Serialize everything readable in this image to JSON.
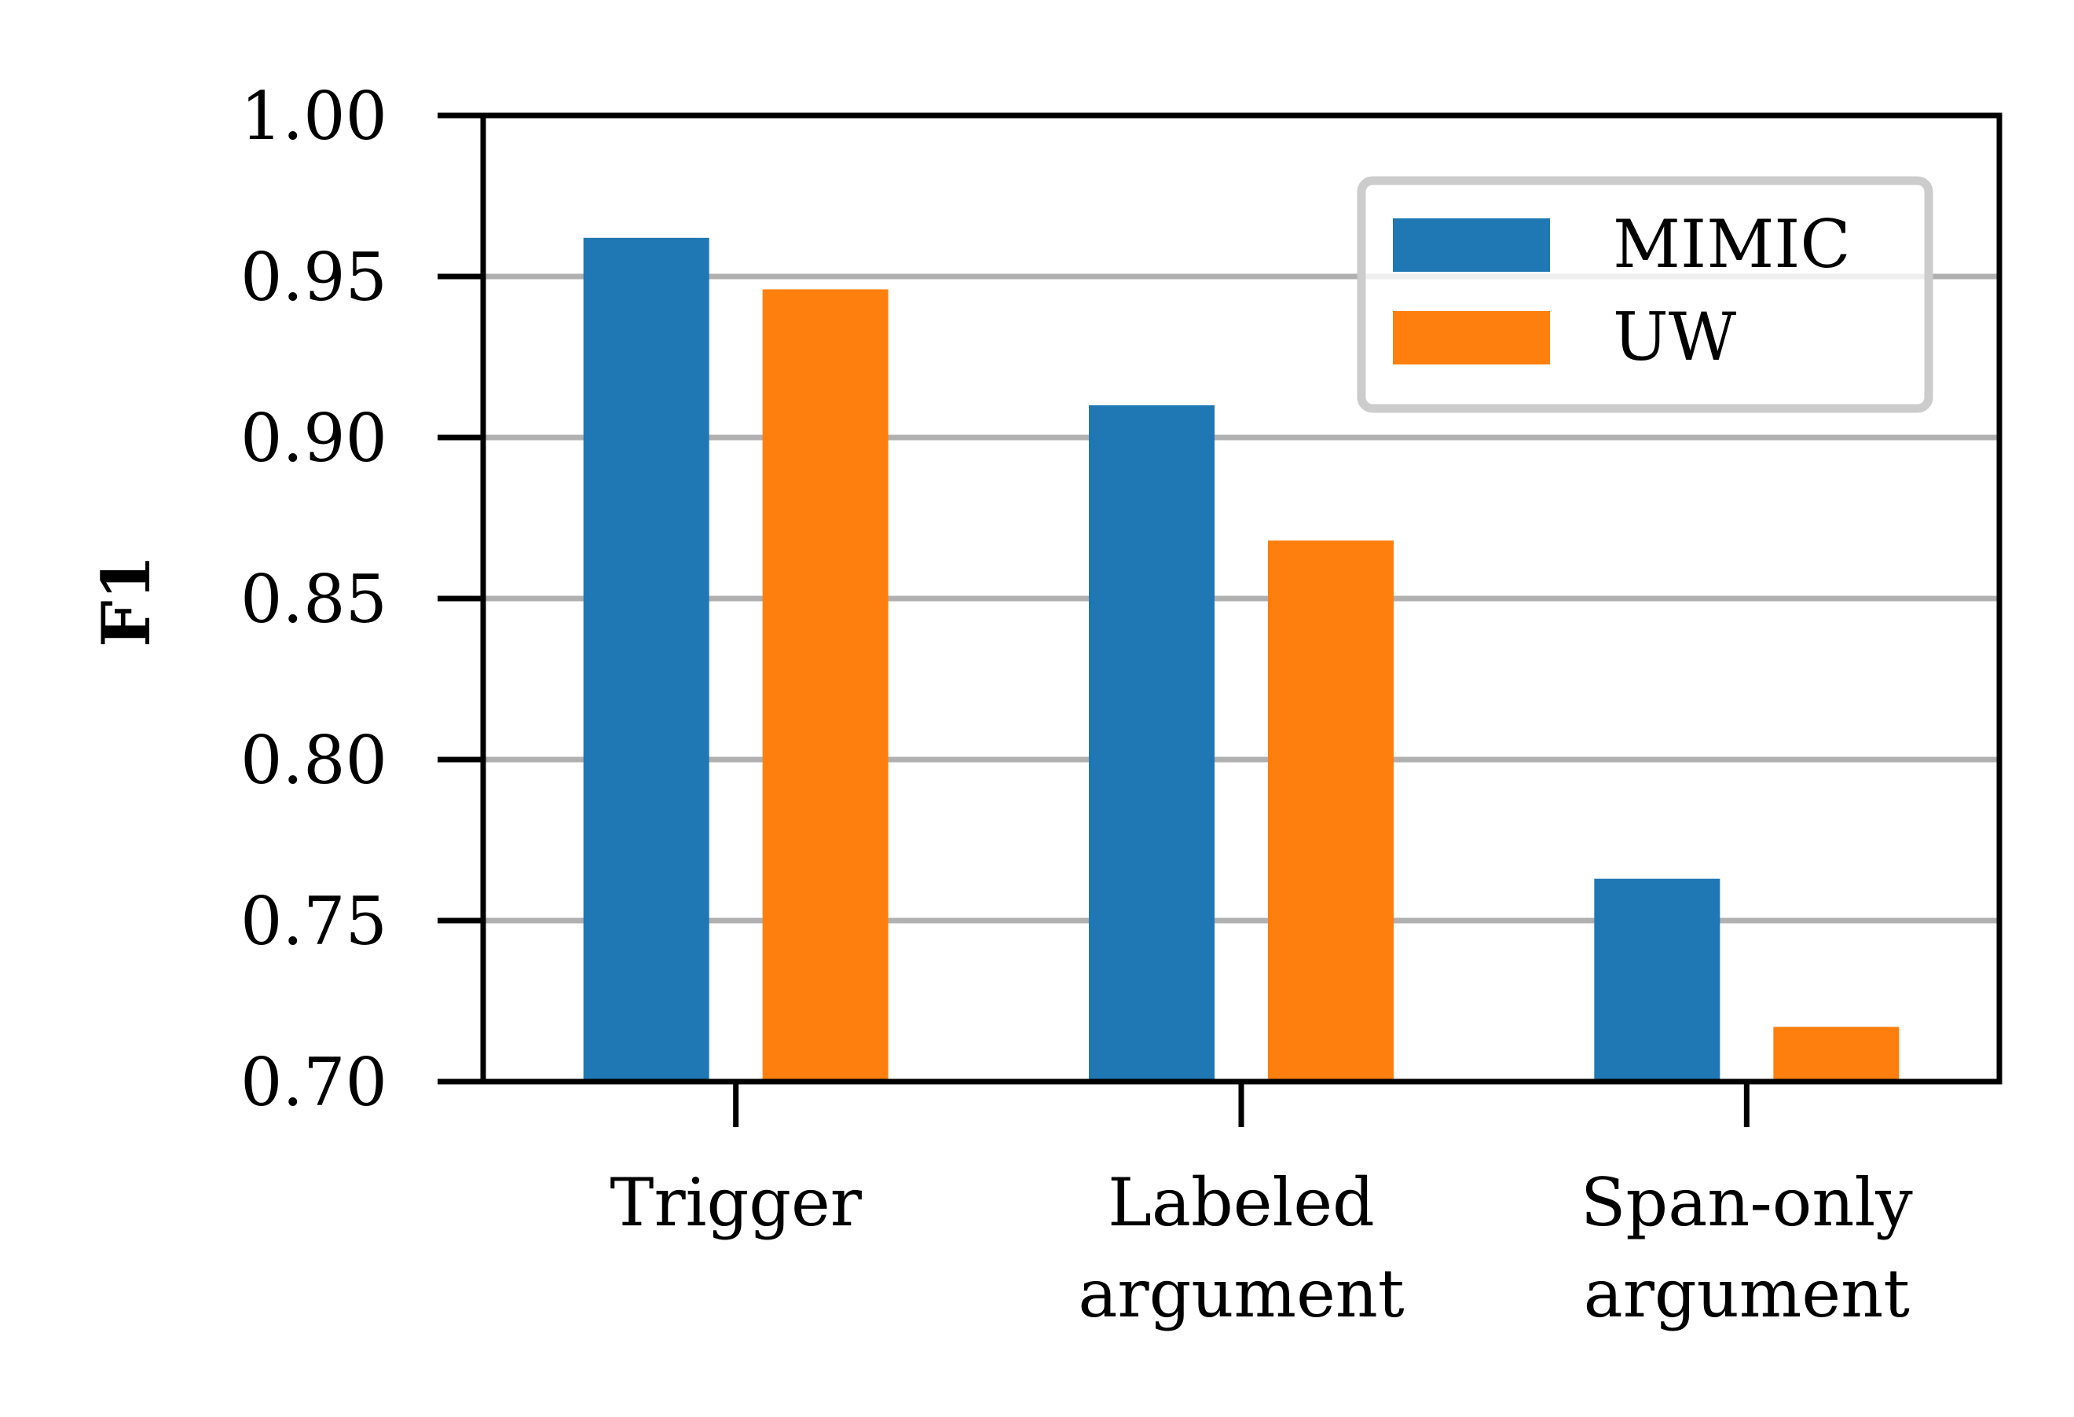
{
  "chart_data": {
    "type": "bar",
    "title": "",
    "xlabel": "",
    "ylabel": "F1",
    "categories": [
      [
        "Trigger"
      ],
      [
        "Labeled",
        "argument"
      ],
      [
        "Span-only",
        "argument"
      ]
    ],
    "series": [
      {
        "name": "MIMIC",
        "color": "#1f77b4",
        "values": [
          0.962,
          0.91,
          0.763
        ]
      },
      {
        "name": "UW",
        "color": "#ff7f0e",
        "values": [
          0.946,
          0.868,
          0.717
        ]
      }
    ],
    "ylim": [
      0.7,
      1.0
    ],
    "yticks": [
      "0.70",
      "0.75",
      "0.80",
      "0.85",
      "0.90",
      "0.95",
      "1.00"
    ],
    "grid": "horizontal",
    "legend_position": "top-right"
  }
}
